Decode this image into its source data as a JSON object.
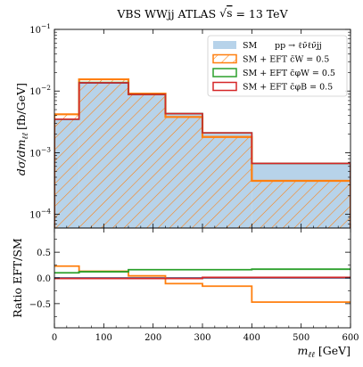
{
  "chart_data": {
    "type": "histogram",
    "title": "VBS WWjj ATLAS √s = 13 TeV",
    "title_parts": {
      "pre": "VBS WWjj ATLAS ",
      "rad": "s",
      "post": " = 13 TeV"
    },
    "xlabel": "m_ℓℓ [GeV]",
    "xlabel_parts": {
      "m": "m",
      "sub": "ℓℓ",
      "unit": "[GeV]"
    },
    "xlim": [
      0,
      600
    ],
    "x_ticks": [
      0,
      100,
      200,
      300,
      400,
      500,
      600
    ],
    "bin_edges": [
      0,
      50,
      150,
      225,
      300,
      400,
      600
    ],
    "top_panel": {
      "ylabel": "dσ/dm_ℓℓ [fb/GeV]",
      "ylabel_parts": {
        "main": "dσ/dm",
        "sub": "ℓℓ",
        "unit": "[fb/GeV]"
      },
      "yscale": "log",
      "ylim": [
        6e-05,
        0.1
      ],
      "y_ticks": [
        {
          "value": 0.0001,
          "base": "10",
          "exp": "−4"
        },
        {
          "value": 0.001,
          "base": "10",
          "exp": "−3"
        },
        {
          "value": 0.01,
          "base": "10",
          "exp": "−2"
        },
        {
          "value": 0.1,
          "base": "10",
          "exp": "−1"
        }
      ],
      "series": [
        {
          "name": "SM",
          "style": "filled-step",
          "color": "#1f77b4",
          "fill": "#b7d3ea",
          "values": [
            0.0035,
            0.0135,
            0.0088,
            0.0043,
            0.0021,
            0.00067
          ]
        },
        {
          "name": "SM + EFT c̄W = 0.5",
          "style": "hatched-step",
          "color": "#ff7f0e",
          "values": [
            0.0042,
            0.0155,
            0.0091,
            0.0038,
            0.0018,
            0.00035
          ]
        },
        {
          "name": "SM + EFT c̄φW = 0.5",
          "style": "step",
          "color": "#2ca02c",
          "values": [
            0.0035,
            0.0138,
            0.0088,
            0.0043,
            0.0021,
            0.00067
          ]
        },
        {
          "name": "SM + EFT c̄φB = 0.5",
          "style": "step",
          "color": "#d62728",
          "values": [
            0.0035,
            0.0136,
            0.0088,
            0.0043,
            0.0021,
            0.00067
          ]
        }
      ]
    },
    "bottom_panel": {
      "ylabel": "Ratio EFT/SM",
      "ylim": [
        -0.97,
        0.97
      ],
      "y_ticks": [
        -0.5,
        0.0,
        0.5
      ],
      "y_tick_labels": [
        "−0.5",
        "0.0",
        "0.5"
      ],
      "series": [
        {
          "name": "SM",
          "color": "#1f77b4",
          "values": [
            0,
            0,
            0,
            0,
            0,
            0
          ]
        },
        {
          "name": "SM + EFT c̄W = 0.5",
          "color": "#ff7f0e",
          "values": [
            0.23,
            0.13,
            0.04,
            -0.11,
            -0.16,
            -0.47
          ]
        },
        {
          "name": "SM + EFT c̄φW = 0.5",
          "color": "#2ca02c",
          "values": [
            0.1,
            0.12,
            0.16,
            0.16,
            0.16,
            0.17
          ]
        },
        {
          "name": "SM + EFT c̄φB = 0.5",
          "color": "#d62728",
          "values": [
            -0.01,
            -0.01,
            -0.01,
            -0.01,
            0.01,
            0.01
          ]
        }
      ]
    },
    "legend": {
      "placement": "top-right",
      "process_label": "pp → ℓν̄ℓν̄jj",
      "entries": [
        {
          "name": "SM",
          "swatch": "filled",
          "color": "#1f77b4",
          "fill": "#b7d3ea"
        },
        {
          "name": "SM + EFT c̄W = 0.5",
          "swatch": "hatched",
          "color": "#ff7f0e"
        },
        {
          "name": "SM + EFT c̄φW = 0.5",
          "swatch": "outline",
          "color": "#2ca02c"
        },
        {
          "name": "SM + EFT c̄φB = 0.5",
          "swatch": "outline",
          "color": "#d62728"
        }
      ]
    }
  }
}
